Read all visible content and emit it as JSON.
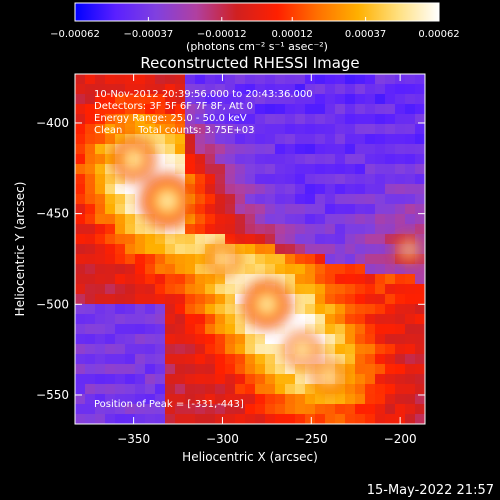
{
  "chart_data": {
    "type": "heatmap",
    "title": "Reconstructed RHESSI Image",
    "xlabel": "Heliocentric X (arcsec)",
    "ylabel": "Heliocentric Y (arcsec)",
    "xlim": [
      -383,
      -186
    ],
    "ylim": [
      -566,
      -373
    ],
    "x_ticks": [
      -350,
      -300,
      -250,
      -200
    ],
    "x_tick_labels": [
      "−350",
      "−300",
      "−250",
      "−200"
    ],
    "y_ticks": [
      -400,
      -450,
      -500,
      -550
    ],
    "y_tick_labels": [
      "−400",
      "−450",
      "−500",
      "−550"
    ],
    "colorbar": {
      "min": -0.00062,
      "max": 0.00062,
      "ticks": [
        -0.00062,
        -0.00037,
        -0.00012,
        0.00012,
        0.00037,
        0.00062
      ],
      "tick_labels": [
        "−0.00062",
        "−0.00037",
        "−0.00012",
        "0.00012",
        "0.00037",
        "0.00062"
      ],
      "unit_label": "(photons cm⁻² s⁻¹ asec⁻²)",
      "colors": [
        "#0000ff",
        "#5a20ff",
        "#8040e0",
        "#b040a0",
        "#d02020",
        "#ff2000",
        "#ff7000",
        "#ffb000",
        "#ffe080",
        "#ffffff"
      ]
    },
    "sources": [
      {
        "x": -331,
        "y": -443,
        "value": 0.00062
      },
      {
        "x": -350,
        "y": -420,
        "value": 0.00045
      },
      {
        "x": -275,
        "y": -500,
        "value": 0.00052
      },
      {
        "x": -255,
        "y": -525,
        "value": 0.00035
      },
      {
        "x": -240,
        "y": -540,
        "value": 0.0003
      },
      {
        "x": -300,
        "y": -475,
        "value": 0.0003
      },
      {
        "x": -195,
        "y": -470,
        "value": 0.00025
      }
    ],
    "annotations": [
      "10-Nov-2012 20:39:56.000 to 20:43:36.000",
      "Detectors: 3F 5F 6F 7F 8F, Att 0",
      "Energy Range: 25.0 - 50.0 keV",
      "Clean     Total counts: 3.75E+03"
    ],
    "peak_label": "Position of Peak = [-331,-443]"
  },
  "footer": {
    "date": "15-May-2022 21:57"
  }
}
